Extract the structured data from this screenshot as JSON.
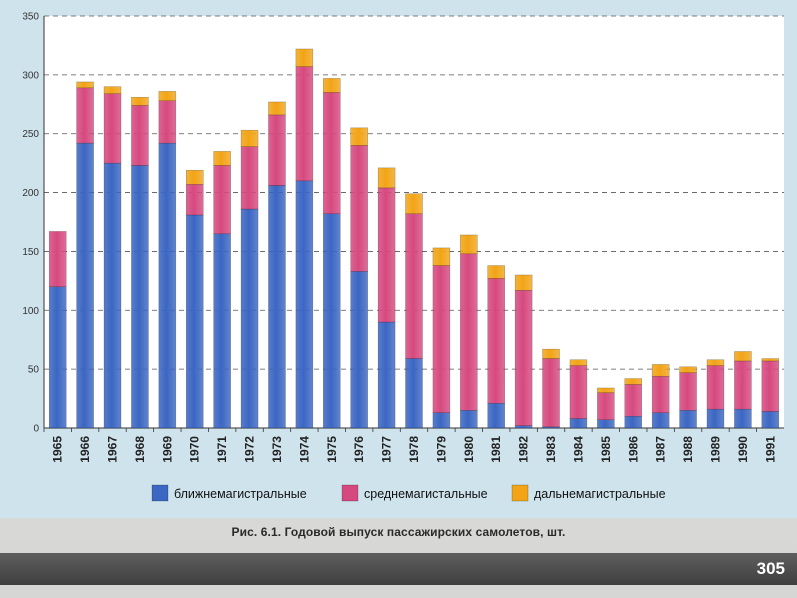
{
  "caption": "Рис. 6.1. Годовой выпуск пассажирских самолетов, шт.",
  "page_number": "305",
  "chart_data": {
    "type": "bar",
    "stacked": true,
    "ylim": [
      0,
      350
    ],
    "yticks": [
      0,
      50,
      100,
      150,
      200,
      250,
      300,
      350
    ],
    "grid": "horizontal-dashed",
    "legend_position": "bottom",
    "categories": [
      "1965",
      "1966",
      "1967",
      "1968",
      "1969",
      "1970",
      "1971",
      "1972",
      "1973",
      "1974",
      "1975",
      "1976",
      "1977",
      "1978",
      "1979",
      "1980",
      "1981",
      "1982",
      "1983",
      "1984",
      "1985",
      "1986",
      "1987",
      "1988",
      "1989",
      "1990",
      "1991"
    ],
    "series": [
      {
        "name": "ближнемагистральные",
        "color": "#3b66c2",
        "values": [
          120,
          242,
          225,
          223,
          242,
          181,
          165,
          186,
          206,
          210,
          182,
          133,
          90,
          59,
          13,
          15,
          21,
          2,
          1,
          8,
          7,
          10,
          13,
          15,
          16,
          16,
          14
        ]
      },
      {
        "name": "среднемагистальные",
        "color": "#d6497f",
        "values": [
          47,
          47,
          59,
          51,
          36,
          26,
          58,
          53,
          60,
          97,
          103,
          107,
          114,
          123,
          125,
          133,
          106,
          115,
          58,
          45,
          23,
          27,
          31,
          32,
          37,
          41,
          43
        ]
      },
      {
        "name": "дальнемагистральные",
        "color": "#f2a416",
        "values": [
          0,
          5,
          6,
          7,
          8,
          12,
          12,
          14,
          11,
          15,
          12,
          15,
          17,
          17,
          15,
          16,
          11,
          13,
          8,
          5,
          4,
          5,
          10,
          5,
          5,
          8,
          2
        ]
      }
    ]
  }
}
